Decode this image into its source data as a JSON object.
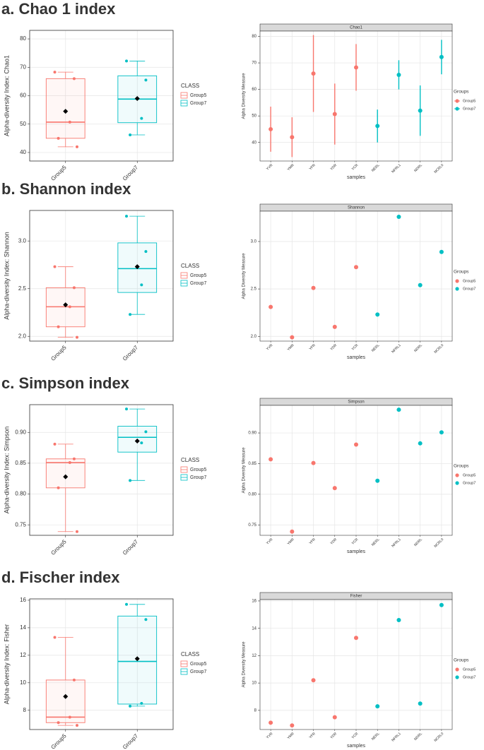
{
  "chart_data": [
    {
      "type": "box",
      "title": "a. Chao 1 index",
      "ylabel": "Alpha-diversity Index: Chao1",
      "legend_title": "CLASS",
      "categories": [
        "Group5",
        "Group7"
      ],
      "ylim": [
        37,
        83
      ],
      "yticks": [
        40,
        50,
        60,
        70,
        80
      ],
      "grid": true,
      "series": [
        {
          "name": "Group5",
          "color": "#F8766D",
          "points": [
            68.3,
            66,
            50.7,
            45,
            42
          ],
          "whisker_low": 42,
          "q1": 45,
          "median": 50.7,
          "q3": 66,
          "whisker_high": 68.3,
          "mean": 54.5
        },
        {
          "name": "Group7",
          "color": "#00BFC4",
          "points": [
            72.2,
            65.5,
            52,
            46.2
          ],
          "whisker_low": 46.2,
          "q1": 50.5,
          "median": 58.8,
          "q3": 67,
          "whisker_high": 72.2,
          "mean": 59
        }
      ]
    },
    {
      "type": "scatter",
      "title": "Chao1",
      "xlabel": "samples",
      "ylabel": "Alpha Diversity Measure",
      "legend_title": "Groups",
      "categories": [
        "YVR",
        "YMR",
        "YFR",
        "YDR",
        "YCR",
        "NERL",
        "NFRL1",
        "NDRL",
        "NCRL0"
      ],
      "ylim": [
        33,
        82
      ],
      "yticks": [
        40,
        50,
        60,
        70,
        80
      ],
      "grid": true,
      "series": [
        {
          "name": "Group5",
          "color": "#F8766D",
          "values": [
            45,
            42,
            66,
            50.7,
            68.3,
            null,
            null,
            null,
            null
          ],
          "errors": [
            8.5,
            7.5,
            14.5,
            11.5,
            8.8,
            null,
            null,
            null,
            null
          ]
        },
        {
          "name": "Group7",
          "color": "#00BFC4",
          "values": [
            null,
            null,
            null,
            null,
            null,
            46.2,
            65.5,
            52,
            72.2
          ],
          "errors": [
            null,
            null,
            null,
            null,
            null,
            6.2,
            5.5,
            9.5,
            6.5
          ]
        }
      ]
    },
    {
      "type": "box",
      "title": "b. Shannon index",
      "ylabel": "Alpha-diversity Index: Shannon",
      "legend_title": "CLASS",
      "categories": [
        "Group5",
        "Group7"
      ],
      "ylim": [
        1.95,
        3.32
      ],
      "yticks": [
        {
          "value": 2,
          "label": "2.0"
        },
        2.5,
        {
          "value": 3,
          "label": "3.0"
        }
      ],
      "grid": true,
      "series": [
        {
          "name": "Group5",
          "color": "#F8766D",
          "points": [
            2.73,
            2.51,
            2.31,
            2.1,
            1.99
          ],
          "whisker_low": 1.99,
          "q1": 2.1,
          "median": 2.31,
          "q3": 2.51,
          "whisker_high": 2.73,
          "mean": 2.33
        },
        {
          "name": "Group7",
          "color": "#00BFC4",
          "points": [
            3.26,
            2.89,
            2.54,
            2.23
          ],
          "whisker_low": 2.23,
          "q1": 2.46,
          "median": 2.71,
          "q3": 2.98,
          "whisker_high": 3.26,
          "mean": 2.73
        }
      ]
    },
    {
      "type": "scatter",
      "title": "Shannon",
      "xlabel": "samples",
      "ylabel": "Alpha Diversity Measure",
      "legend_title": "Groups",
      "categories": [
        "YVR",
        "YMR",
        "YFR",
        "YDR",
        "YCR",
        "NERL",
        "NFRL1",
        "NDRL",
        "NCRL0"
      ],
      "ylim": [
        1.95,
        3.32
      ],
      "yticks": [
        {
          "value": 2,
          "label": "2.0"
        },
        2.5,
        {
          "value": 3,
          "label": "3.0"
        }
      ],
      "grid": true,
      "series": [
        {
          "name": "Group5",
          "color": "#F8766D",
          "values": [
            2.31,
            1.99,
            2.51,
            2.1,
            2.73,
            null,
            null,
            null,
            null
          ]
        },
        {
          "name": "Group7",
          "color": "#00BFC4",
          "values": [
            null,
            null,
            null,
            null,
            null,
            2.23,
            3.26,
            2.54,
            2.89
          ]
        }
      ]
    },
    {
      "type": "box",
      "title": "c. Simpson index",
      "ylabel": "Alpha-diversity Index: Simpson",
      "legend_title": "CLASS",
      "categories": [
        "Group5",
        "Group7"
      ],
      "ylim": [
        0.733,
        0.945
      ],
      "yticks": [
        0.75,
        {
          "value": 0.8,
          "label": "0.80"
        },
        0.85,
        {
          "value": 0.9,
          "label": "0.90"
        }
      ],
      "grid": true,
      "series": [
        {
          "name": "Group5",
          "color": "#F8766D",
          "points": [
            0.881,
            0.857,
            0.851,
            0.81,
            0.739
          ],
          "whisker_low": 0.739,
          "q1": 0.81,
          "median": 0.851,
          "q3": 0.857,
          "whisker_high": 0.881,
          "mean": 0.828
        },
        {
          "name": "Group7",
          "color": "#00BFC4",
          "points": [
            0.938,
            0.901,
            0.883,
            0.822
          ],
          "whisker_low": 0.822,
          "q1": 0.868,
          "median": 0.892,
          "q3": 0.91,
          "whisker_high": 0.938,
          "mean": 0.886
        }
      ]
    },
    {
      "type": "scatter",
      "title": "Simpson",
      "xlabel": "samples",
      "ylabel": "Alpha Diversity Measure",
      "legend_title": "Groups",
      "categories": [
        "YVR",
        "YMR",
        "YFR",
        "YDR",
        "YCR",
        "NERL",
        "NFRL1",
        "NDRL",
        "NCRL0"
      ],
      "ylim": [
        0.733,
        0.945
      ],
      "yticks": [
        0.75,
        {
          "value": 0.8,
          "label": "0.80"
        },
        0.85,
        {
          "value": 0.9,
          "label": "0.90"
        }
      ],
      "grid": true,
      "series": [
        {
          "name": "Group5",
          "color": "#F8766D",
          "values": [
            0.857,
            0.739,
            0.851,
            0.81,
            0.881,
            null,
            null,
            null,
            null
          ]
        },
        {
          "name": "Group7",
          "color": "#00BFC4",
          "values": [
            null,
            null,
            null,
            null,
            null,
            0.822,
            0.938,
            0.883,
            0.901
          ]
        }
      ]
    },
    {
      "type": "box",
      "title": "d. Fischer index",
      "ylabel": "Alpha-diversity Index: Fisher",
      "legend_title": "CLASS",
      "categories": [
        "Group5",
        "Group7"
      ],
      "ylim": [
        6.6,
        16.1
      ],
      "yticks": [
        8,
        10,
        12,
        14,
        16
      ],
      "grid": true,
      "series": [
        {
          "name": "Group5",
          "color": "#F8766D",
          "points": [
            13.3,
            10.2,
            7.5,
            7.1,
            6.9
          ],
          "whisker_low": 6.9,
          "q1": 7.1,
          "median": 7.5,
          "q3": 10.2,
          "whisker_high": 13.3,
          "mean": 9
        },
        {
          "name": "Group7",
          "color": "#00BFC4",
          "points": [
            15.7,
            14.6,
            8.5,
            8.3
          ],
          "whisker_low": 8.3,
          "q1": 8.45,
          "median": 11.55,
          "q3": 14.85,
          "whisker_high": 15.7,
          "mean": 11.75
        }
      ]
    },
    {
      "type": "scatter",
      "title": "Fisher",
      "xlabel": "samples",
      "ylabel": "Alpha Diversity Measure",
      "legend_title": "Groups",
      "categories": [
        "YVR",
        "YMR",
        "YFR",
        "YDR",
        "YCR",
        "NERL",
        "NFRL1",
        "NDRL",
        "NCRL0"
      ],
      "ylim": [
        6.6,
        16.1
      ],
      "yticks": [
        8,
        10,
        12,
        14,
        16
      ],
      "grid": true,
      "series": [
        {
          "name": "Group5",
          "color": "#F8766D",
          "values": [
            7.1,
            6.9,
            10.2,
            7.5,
            13.3,
            null,
            null,
            null,
            null
          ]
        },
        {
          "name": "Group7",
          "color": "#00BFC4",
          "values": [
            null,
            null,
            null,
            null,
            null,
            8.3,
            14.6,
            8.5,
            15.7
          ]
        }
      ]
    }
  ]
}
